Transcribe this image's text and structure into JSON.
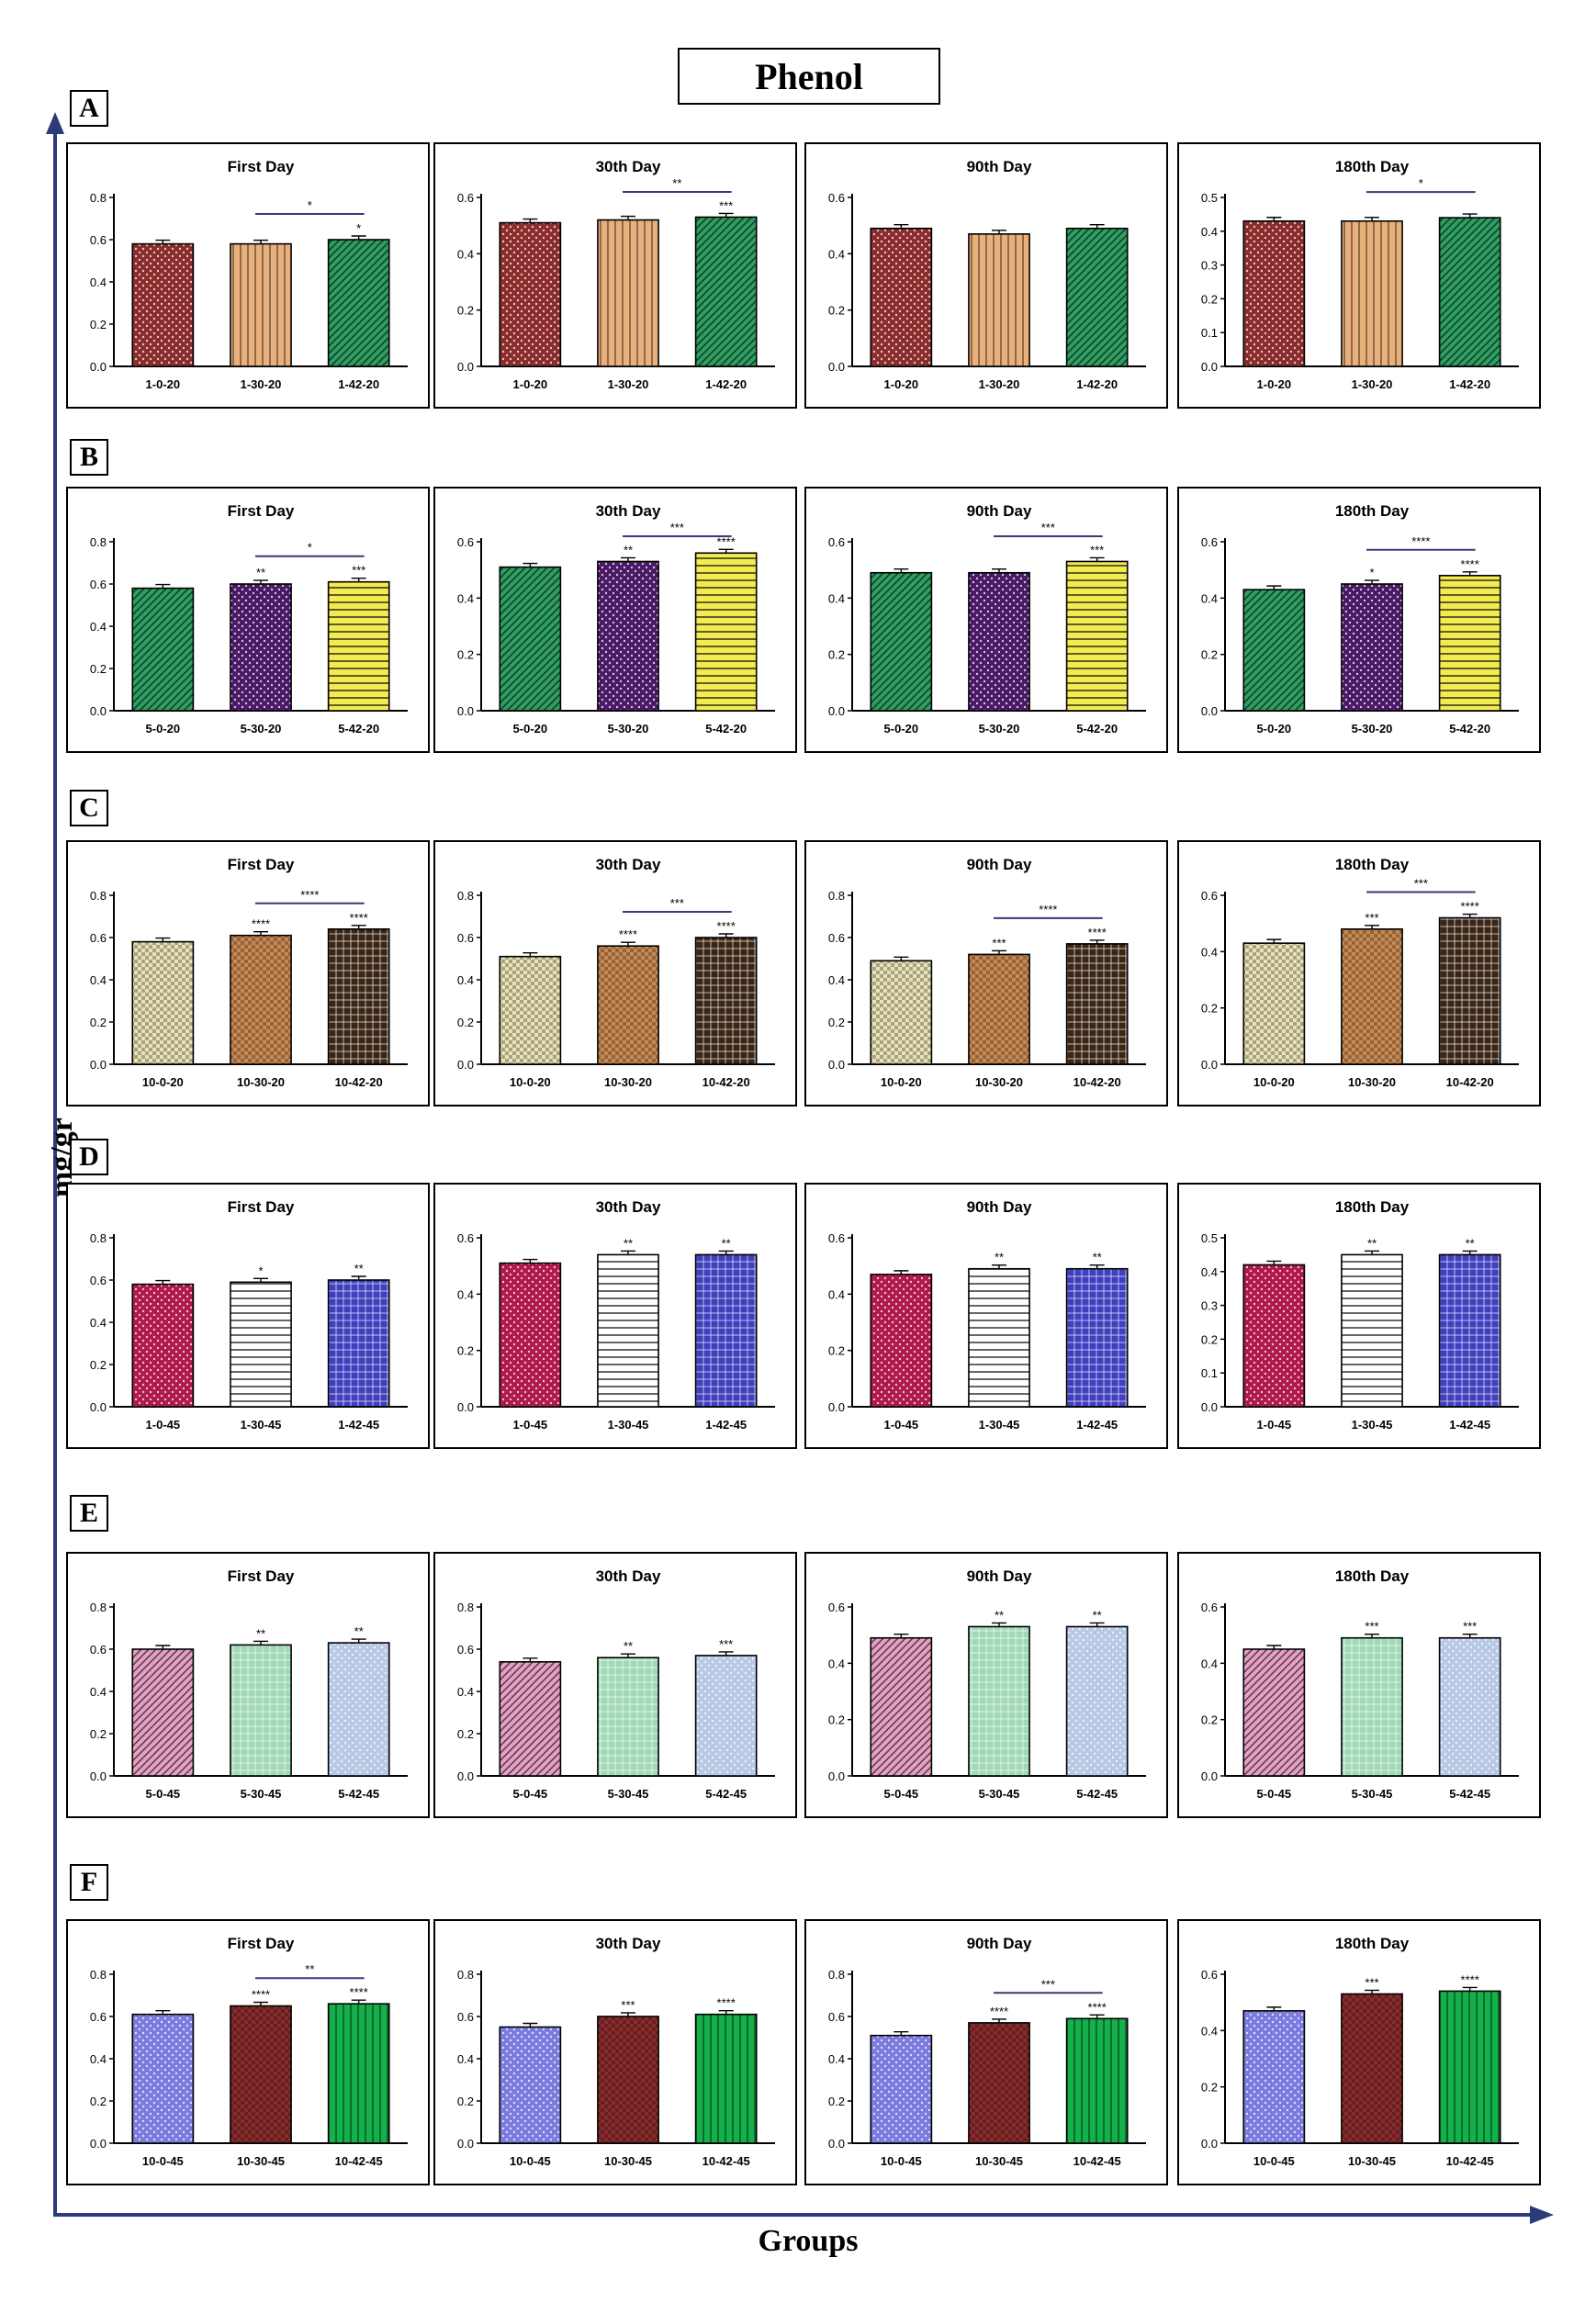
{
  "page": {
    "title": "Phenol",
    "y_axis_label": "mg/gr",
    "x_axis_label": "Groups"
  },
  "colors": {
    "dark_red": "#8b2c2c",
    "peach": "#e9b07c",
    "green": "#2e9e62",
    "purple": "#4b1a66",
    "yellow": "#f2ec52",
    "cream": "#e8e2b4",
    "tan": "#c98a52",
    "dark_brown": "#3b2616",
    "crimson": "#b0184e",
    "white_striped": "#ffffff",
    "blue": "#3f3fbf",
    "pink": "#e6a0c4",
    "mint": "#9fd9b6",
    "light_blue": "#b8c9e6",
    "periwinkle": "#7b7bdf",
    "bright_green": "#14b04a"
  },
  "chart_data": [
    {
      "id": "A-1",
      "row": "A",
      "type": "bar",
      "title": "First Day",
      "categories": [
        "1-0-20",
        "1-30-20",
        "1-42-20"
      ],
      "values": [
        0.58,
        0.58,
        0.6
      ],
      "ylim": [
        0,
        0.8
      ],
      "yticks": [
        "0.0",
        "0.2",
        "0.4",
        "0.6",
        "0.8"
      ],
      "stars": [
        "",
        "",
        "*"
      ],
      "brackets": [
        {
          "from": 1,
          "to": 2,
          "label": "*"
        }
      ],
      "fills": [
        "dark_red",
        "peach",
        "green"
      ],
      "patterns": [
        "dots",
        "vlines",
        "diag"
      ]
    },
    {
      "id": "A-2",
      "row": "A",
      "type": "bar",
      "title": "30th Day",
      "categories": [
        "1-0-20",
        "1-30-20",
        "1-42-20"
      ],
      "values": [
        0.51,
        0.52,
        0.53
      ],
      "ylim": [
        0,
        0.6
      ],
      "yticks": [
        "0.0",
        "0.2",
        "0.4",
        "0.6"
      ],
      "stars": [
        "",
        "",
        "***"
      ],
      "brackets": [
        {
          "from": 1,
          "to": 2,
          "label": "**"
        }
      ],
      "fills": [
        "dark_red",
        "peach",
        "green"
      ],
      "patterns": [
        "dots",
        "vlines",
        "diag"
      ]
    },
    {
      "id": "A-3",
      "row": "A",
      "type": "bar",
      "title": "90th Day",
      "categories": [
        "1-0-20",
        "1-30-20",
        "1-42-20"
      ],
      "values": [
        0.49,
        0.47,
        0.49
      ],
      "ylim": [
        0,
        0.6
      ],
      "yticks": [
        "0.0",
        "0.2",
        "0.4",
        "0.6"
      ],
      "stars": [
        "",
        "",
        ""
      ],
      "brackets": [],
      "fills": [
        "dark_red",
        "peach",
        "green"
      ],
      "patterns": [
        "dots",
        "vlines",
        "diag"
      ]
    },
    {
      "id": "A-4",
      "row": "A",
      "type": "bar",
      "title": "180th Day",
      "categories": [
        "1-0-20",
        "1-30-20",
        "1-42-20"
      ],
      "values": [
        0.43,
        0.43,
        0.44
      ],
      "ylim": [
        0,
        0.5
      ],
      "yticks": [
        "0.0",
        "0.1",
        "0.2",
        "0.3",
        "0.4",
        "0.5"
      ],
      "stars": [
        "",
        "",
        ""
      ],
      "brackets": [
        {
          "from": 1,
          "to": 2,
          "label": "*"
        }
      ],
      "fills": [
        "dark_red",
        "peach",
        "green"
      ],
      "patterns": [
        "dots",
        "vlines",
        "diag"
      ]
    },
    {
      "id": "B-1",
      "row": "B",
      "type": "bar",
      "title": "First Day",
      "categories": [
        "5-0-20",
        "5-30-20",
        "5-42-20"
      ],
      "values": [
        0.58,
        0.6,
        0.61
      ],
      "ylim": [
        0,
        0.8
      ],
      "yticks": [
        "0.0",
        "0.2",
        "0.4",
        "0.6",
        "0.8"
      ],
      "stars": [
        "",
        "**",
        "***"
      ],
      "brackets": [
        {
          "from": 1,
          "to": 2,
          "label": "*"
        }
      ],
      "fills": [
        "green",
        "purple",
        "yellow"
      ],
      "patterns": [
        "diag",
        "dots",
        "hlines"
      ]
    },
    {
      "id": "B-2",
      "row": "B",
      "type": "bar",
      "title": "30th Day",
      "categories": [
        "5-0-20",
        "5-30-20",
        "5-42-20"
      ],
      "values": [
        0.51,
        0.53,
        0.56
      ],
      "ylim": [
        0,
        0.6
      ],
      "yticks": [
        "0.0",
        "0.2",
        "0.4",
        "0.6"
      ],
      "stars": [
        "",
        "**",
        "****"
      ],
      "brackets": [
        {
          "from": 1,
          "to": 2,
          "label": "***"
        }
      ],
      "fills": [
        "green",
        "purple",
        "yellow"
      ],
      "patterns": [
        "diag",
        "dots",
        "hlines"
      ]
    },
    {
      "id": "B-3",
      "row": "B",
      "type": "bar",
      "title": "90th Day",
      "categories": [
        "5-0-20",
        "5-30-20",
        "5-42-20"
      ],
      "values": [
        0.49,
        0.49,
        0.53
      ],
      "ylim": [
        0,
        0.6
      ],
      "yticks": [
        "0.0",
        "0.2",
        "0.4",
        "0.6"
      ],
      "stars": [
        "",
        "",
        "***"
      ],
      "brackets": [
        {
          "from": 1,
          "to": 2,
          "label": "***"
        }
      ],
      "fills": [
        "green",
        "purple",
        "yellow"
      ],
      "patterns": [
        "diag",
        "dots",
        "hlines"
      ]
    },
    {
      "id": "B-4",
      "row": "B",
      "type": "bar",
      "title": "180th Day",
      "categories": [
        "5-0-20",
        "5-30-20",
        "5-42-20"
      ],
      "values": [
        0.43,
        0.45,
        0.48
      ],
      "ylim": [
        0,
        0.6
      ],
      "yticks": [
        "0.0",
        "0.2",
        "0.4",
        "0.6"
      ],
      "stars": [
        "",
        "*",
        "****"
      ],
      "brackets": [
        {
          "from": 1,
          "to": 2,
          "label": "****"
        }
      ],
      "fills": [
        "green",
        "purple",
        "yellow"
      ],
      "patterns": [
        "diag",
        "dots",
        "hlines"
      ]
    },
    {
      "id": "C-1",
      "row": "C",
      "type": "bar",
      "title": "First Day",
      "categories": [
        "10-0-20",
        "10-30-20",
        "10-42-20"
      ],
      "values": [
        0.58,
        0.61,
        0.64
      ],
      "ylim": [
        0,
        0.8
      ],
      "yticks": [
        "0.0",
        "0.2",
        "0.4",
        "0.6",
        "0.8"
      ],
      "stars": [
        "",
        "****",
        "****"
      ],
      "brackets": [
        {
          "from": 1,
          "to": 2,
          "label": "****"
        }
      ],
      "fills": [
        "cream",
        "tan",
        "dark_brown"
      ],
      "patterns": [
        "check",
        "check",
        "grid"
      ]
    },
    {
      "id": "C-2",
      "row": "C",
      "type": "bar",
      "title": "30th Day",
      "categories": [
        "10-0-20",
        "10-30-20",
        "10-42-20"
      ],
      "values": [
        0.51,
        0.56,
        0.6
      ],
      "ylim": [
        0,
        0.8
      ],
      "yticks": [
        "0.0",
        "0.2",
        "0.4",
        "0.6",
        "0.8"
      ],
      "stars": [
        "",
        "****",
        "****"
      ],
      "brackets": [
        {
          "from": 1,
          "to": 2,
          "label": "***"
        }
      ],
      "fills": [
        "cream",
        "tan",
        "dark_brown"
      ],
      "patterns": [
        "check",
        "check",
        "grid"
      ]
    },
    {
      "id": "C-3",
      "row": "C",
      "type": "bar",
      "title": "90th Day",
      "categories": [
        "10-0-20",
        "10-30-20",
        "10-42-20"
      ],
      "values": [
        0.49,
        0.52,
        0.57
      ],
      "ylim": [
        0,
        0.8
      ],
      "yticks": [
        "0.0",
        "0.2",
        "0.4",
        "0.6",
        "0.8"
      ],
      "stars": [
        "",
        "***",
        "****"
      ],
      "brackets": [
        {
          "from": 1,
          "to": 2,
          "label": "****"
        }
      ],
      "fills": [
        "cream",
        "tan",
        "dark_brown"
      ],
      "patterns": [
        "check",
        "check",
        "grid"
      ]
    },
    {
      "id": "C-4",
      "row": "C",
      "type": "bar",
      "title": "180th Day",
      "categories": [
        "10-0-20",
        "10-30-20",
        "10-42-20"
      ],
      "values": [
        0.43,
        0.48,
        0.52
      ],
      "ylim": [
        0,
        0.6
      ],
      "yticks": [
        "0.0",
        "0.2",
        "0.4",
        "0.6"
      ],
      "stars": [
        "",
        "***",
        "****"
      ],
      "brackets": [
        {
          "from": 1,
          "to": 2,
          "label": "***"
        }
      ],
      "fills": [
        "cream",
        "tan",
        "dark_brown"
      ],
      "patterns": [
        "check",
        "check",
        "grid"
      ]
    },
    {
      "id": "D-1",
      "row": "D",
      "type": "bar",
      "title": "First Day",
      "categories": [
        "1-0-45",
        "1-30-45",
        "1-42-45"
      ],
      "values": [
        0.58,
        0.59,
        0.6
      ],
      "ylim": [
        0,
        0.8
      ],
      "yticks": [
        "0.0",
        "0.2",
        "0.4",
        "0.6",
        "0.8"
      ],
      "stars": [
        "",
        "*",
        "**"
      ],
      "brackets": [],
      "fills": [
        "crimson",
        "white_striped",
        "blue"
      ],
      "patterns": [
        "dots",
        "hlines",
        "grid"
      ]
    },
    {
      "id": "D-2",
      "row": "D",
      "type": "bar",
      "title": "30th Day",
      "categories": [
        "1-0-45",
        "1-30-45",
        "1-42-45"
      ],
      "values": [
        0.51,
        0.54,
        0.54
      ],
      "ylim": [
        0,
        0.6
      ],
      "yticks": [
        "0.0",
        "0.2",
        "0.4",
        "0.6"
      ],
      "stars": [
        "",
        "**",
        "**"
      ],
      "brackets": [],
      "fills": [
        "crimson",
        "white_striped",
        "blue"
      ],
      "patterns": [
        "dots",
        "hlines",
        "grid"
      ]
    },
    {
      "id": "D-3",
      "row": "D",
      "type": "bar",
      "title": "90th Day",
      "categories": [
        "1-0-45",
        "1-30-45",
        "1-42-45"
      ],
      "values": [
        0.47,
        0.49,
        0.49
      ],
      "ylim": [
        0,
        0.6
      ],
      "yticks": [
        "0.0",
        "0.2",
        "0.4",
        "0.6"
      ],
      "stars": [
        "",
        "**",
        "**"
      ],
      "brackets": [],
      "fills": [
        "crimson",
        "white_striped",
        "blue"
      ],
      "patterns": [
        "dots",
        "hlines",
        "grid"
      ]
    },
    {
      "id": "D-4",
      "row": "D",
      "type": "bar",
      "title": "180th Day",
      "categories": [
        "1-0-45",
        "1-30-45",
        "1-42-45"
      ],
      "values": [
        0.42,
        0.45,
        0.45
      ],
      "ylim": [
        0,
        0.5
      ],
      "yticks": [
        "0.0",
        "0.1",
        "0.2",
        "0.3",
        "0.4",
        "0.5"
      ],
      "stars": [
        "",
        "**",
        "**"
      ],
      "brackets": [],
      "fills": [
        "crimson",
        "white_striped",
        "blue"
      ],
      "patterns": [
        "dots",
        "hlines",
        "grid"
      ]
    },
    {
      "id": "E-1",
      "row": "E",
      "type": "bar",
      "title": "First Day",
      "categories": [
        "5-0-45",
        "5-30-45",
        "5-42-45"
      ],
      "values": [
        0.6,
        0.62,
        0.63
      ],
      "ylim": [
        0,
        0.8
      ],
      "yticks": [
        "0.0",
        "0.2",
        "0.4",
        "0.6",
        "0.8"
      ],
      "stars": [
        "",
        "**",
        "**"
      ],
      "brackets": [],
      "fills": [
        "pink",
        "mint",
        "light_blue"
      ],
      "patterns": [
        "diag",
        "grid",
        "dots"
      ]
    },
    {
      "id": "E-2",
      "row": "E",
      "type": "bar",
      "title": "30th Day",
      "categories": [
        "5-0-45",
        "5-30-45",
        "5-42-45"
      ],
      "values": [
        0.54,
        0.56,
        0.57
      ],
      "ylim": [
        0,
        0.8
      ],
      "yticks": [
        "0.0",
        "0.2",
        "0.4",
        "0.6",
        "0.8"
      ],
      "stars": [
        "",
        "**",
        "***"
      ],
      "brackets": [],
      "fills": [
        "pink",
        "mint",
        "light_blue"
      ],
      "patterns": [
        "diag",
        "grid",
        "dots"
      ]
    },
    {
      "id": "E-3",
      "row": "E",
      "type": "bar",
      "title": "90th Day",
      "categories": [
        "5-0-45",
        "5-30-45",
        "5-42-45"
      ],
      "values": [
        0.49,
        0.53,
        0.53
      ],
      "ylim": [
        0,
        0.6
      ],
      "yticks": [
        "0.0",
        "0.2",
        "0.4",
        "0.6"
      ],
      "stars": [
        "",
        "**",
        "**"
      ],
      "brackets": [],
      "fills": [
        "pink",
        "mint",
        "light_blue"
      ],
      "patterns": [
        "diag",
        "grid",
        "dots"
      ]
    },
    {
      "id": "E-4",
      "row": "E",
      "type": "bar",
      "title": "180th Day",
      "categories": [
        "5-0-45",
        "5-30-45",
        "5-42-45"
      ],
      "values": [
        0.45,
        0.49,
        0.49
      ],
      "ylim": [
        0,
        0.6
      ],
      "yticks": [
        "0.0",
        "0.2",
        "0.4",
        "0.6"
      ],
      "stars": [
        "",
        "***",
        "***"
      ],
      "brackets": [],
      "fills": [
        "pink",
        "mint",
        "light_blue"
      ],
      "patterns": [
        "diag",
        "grid",
        "dots"
      ]
    },
    {
      "id": "F-1",
      "row": "F",
      "type": "bar",
      "title": "First Day",
      "categories": [
        "10-0-45",
        "10-30-45",
        "10-42-45"
      ],
      "values": [
        0.61,
        0.65,
        0.66
      ],
      "ylim": [
        0,
        0.8
      ],
      "yticks": [
        "0.0",
        "0.2",
        "0.4",
        "0.6",
        "0.8"
      ],
      "stars": [
        "",
        "****",
        "****"
      ],
      "brackets": [
        {
          "from": 1,
          "to": 2,
          "label": "**"
        }
      ],
      "fills": [
        "periwinkle",
        "dark_red",
        "bright_green"
      ],
      "patterns": [
        "dots",
        "check",
        "vlines"
      ]
    },
    {
      "id": "F-2",
      "row": "F",
      "type": "bar",
      "title": "30th Day",
      "categories": [
        "10-0-45",
        "10-30-45",
        "10-42-45"
      ],
      "values": [
        0.55,
        0.6,
        0.61
      ],
      "ylim": [
        0,
        0.8
      ],
      "yticks": [
        "0.0",
        "0.2",
        "0.4",
        "0.6",
        "0.8"
      ],
      "stars": [
        "",
        "***",
        "****"
      ],
      "brackets": [],
      "fills": [
        "periwinkle",
        "dark_red",
        "bright_green"
      ],
      "patterns": [
        "dots",
        "check",
        "vlines"
      ]
    },
    {
      "id": "F-3",
      "row": "F",
      "type": "bar",
      "title": "90th Day",
      "categories": [
        "10-0-45",
        "10-30-45",
        "10-42-45"
      ],
      "values": [
        0.51,
        0.57,
        0.59
      ],
      "ylim": [
        0,
        0.8
      ],
      "yticks": [
        "0.0",
        "0.2",
        "0.4",
        "0.6",
        "0.8"
      ],
      "stars": [
        "",
        "****",
        "****"
      ],
      "brackets": [
        {
          "from": 1,
          "to": 2,
          "label": "***"
        }
      ],
      "fills": [
        "periwinkle",
        "dark_red",
        "bright_green"
      ],
      "patterns": [
        "dots",
        "check",
        "vlines"
      ]
    },
    {
      "id": "F-4",
      "row": "F",
      "type": "bar",
      "title": "180th Day",
      "categories": [
        "10-0-45",
        "10-30-45",
        "10-42-45"
      ],
      "values": [
        0.47,
        0.53,
        0.54
      ],
      "ylim": [
        0,
        0.6
      ],
      "yticks": [
        "0.0",
        "0.2",
        "0.4",
        "0.6"
      ],
      "stars": [
        "",
        "***",
        "****"
      ],
      "brackets": [],
      "fills": [
        "periwinkle",
        "dark_red",
        "bright_green"
      ],
      "patterns": [
        "dots",
        "check",
        "vlines"
      ]
    }
  ],
  "rows": [
    {
      "label": "A"
    },
    {
      "label": "B"
    },
    {
      "label": "C"
    },
    {
      "label": "D"
    },
    {
      "label": "E"
    },
    {
      "label": "F"
    }
  ]
}
